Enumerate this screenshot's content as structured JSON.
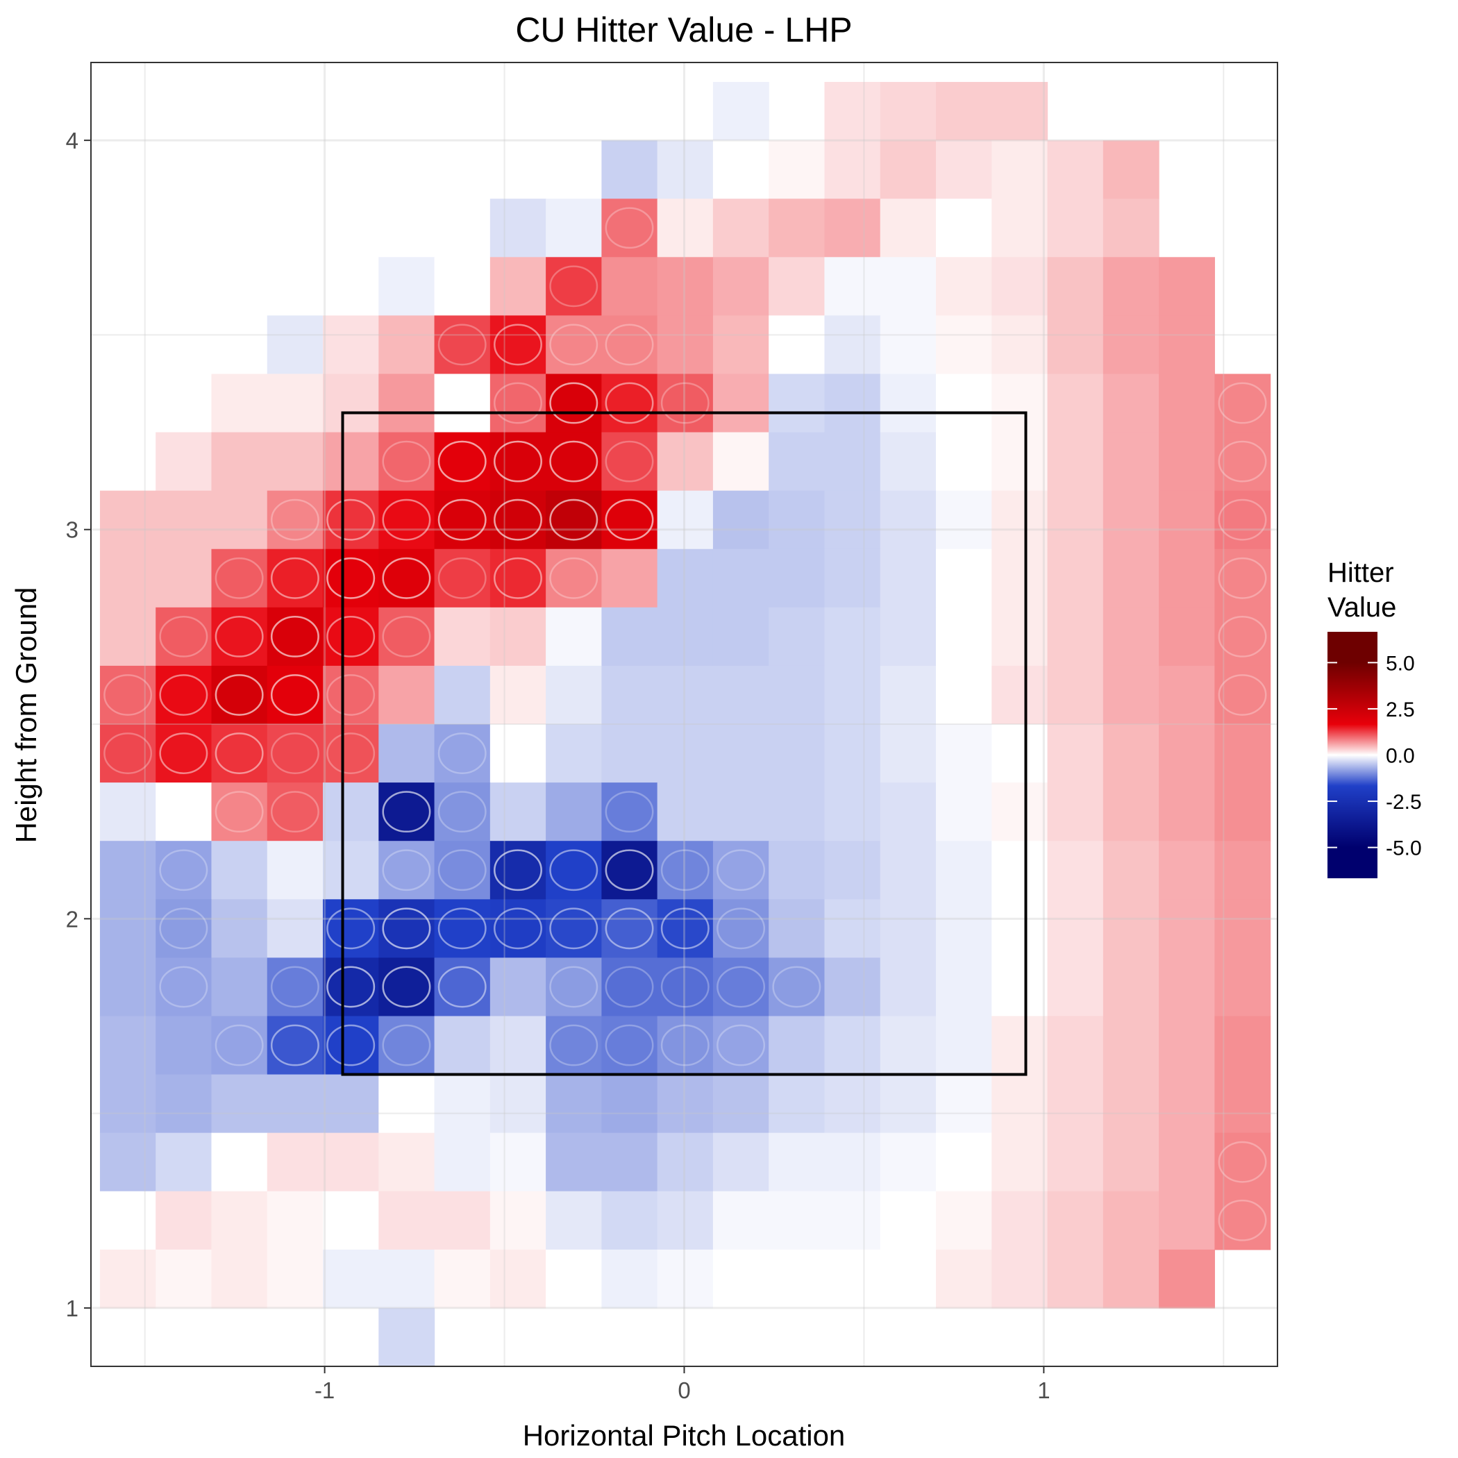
{
  "chart_data": {
    "type": "heatmap",
    "title": "CU Hitter Value - LHP",
    "xlabel": "Horizontal Pitch Location",
    "ylabel": "Height from Ground",
    "xlim": [
      -1.65,
      1.65
    ],
    "ylim": [
      0.85,
      4.2
    ],
    "xticks": [
      -1,
      0,
      1
    ],
    "xtick_labels": [
      "-1",
      "0",
      "1"
    ],
    "yticks": [
      1,
      2,
      3,
      4
    ],
    "ytick_labels": [
      "1",
      "2",
      "3",
      "4"
    ],
    "grid": true,
    "legend": {
      "title_lines": [
        "Hitter",
        "Value"
      ],
      "placement": "right",
      "range": [
        -5,
        5
      ],
      "breaks": [
        5.0,
        2.5,
        0.0,
        -2.5,
        -5.0
      ],
      "break_labels": [
        "5.0",
        "2.5",
        "0.0",
        "-2.5",
        "-5.0"
      ],
      "colors": {
        "low": "#00006e",
        "mid_low": "#2040c8",
        "zero": "#ffffff",
        "mid_high": "#e8000a",
        "high": "#6e0000"
      }
    },
    "strike_zone": {
      "x": [
        -0.95,
        0.95
      ],
      "y": [
        1.6,
        3.3
      ]
    },
    "grid_x_start": -1.625,
    "grid_x_step": 0.155,
    "grid_y_start": 0.85,
    "grid_y_step": 0.15,
    "cell_rows_top_first": [
      [
        null,
        null,
        null,
        null,
        null,
        null,
        null,
        null,
        null,
        null,
        null,
        null,
        null,
        null,
        null,
        null,
        null,
        null,
        null,
        null,
        null
      ],
      [
        null,
        null,
        null,
        null,
        null,
        null,
        null,
        null,
        null,
        null,
        null,
        null,
        null,
        null,
        null,
        null,
        null,
        null,
        null,
        null,
        null
      ],
      [
        null,
        null,
        null,
        null,
        null,
        null,
        null,
        null,
        null,
        null,
        null,
        -0.2,
        null,
        0.3,
        0.4,
        0.5,
        0.5,
        null,
        null,
        null,
        null
      ],
      [
        null,
        null,
        null,
        null,
        null,
        null,
        null,
        null,
        null,
        -0.6,
        -0.3,
        0,
        0.1,
        0.3,
        0.5,
        0.3,
        0.2,
        0.4,
        0.7,
        null,
        null
      ],
      [
        null,
        null,
        null,
        null,
        null,
        null,
        null,
        -0.4,
        -0.2,
        1.4,
        0.2,
        0.5,
        0.7,
        0.8,
        0.2,
        0,
        0.2,
        0.4,
        0.6,
        null,
        null
      ],
      [
        null,
        null,
        null,
        null,
        null,
        -0.2,
        0,
        0.7,
        1.9,
        1.1,
        1.0,
        0.8,
        0.4,
        -0.1,
        -0.1,
        0.2,
        0.3,
        0.6,
        0.9,
        1.0,
        null
      ],
      [
        null,
        null,
        null,
        -0.3,
        0.3,
        0.7,
        1.8,
        2.3,
        1.2,
        1.2,
        1.0,
        0.7,
        0,
        -0.3,
        -0.1,
        0.1,
        0.2,
        0.6,
        0.9,
        1.0,
        null
      ],
      [
        null,
        null,
        0.2,
        0.2,
        0.4,
        1.0,
        0,
        1.5,
        2.8,
        2.2,
        1.6,
        0.8,
        -0.5,
        -0.6,
        -0.2,
        0,
        0.1,
        0.5,
        0.8,
        1.0,
        1.2
      ],
      [
        0,
        0.3,
        0.6,
        0.6,
        0.9,
        1.5,
        2.6,
        2.8,
        2.8,
        1.8,
        0.6,
        0.1,
        -0.6,
        -0.6,
        -0.3,
        0,
        0.1,
        0.5,
        0.8,
        1.0,
        1.2
      ],
      [
        0.6,
        0.6,
        0.6,
        1.2,
        2.0,
        2.4,
        2.8,
        3.0,
        3.3,
        2.7,
        -0.2,
        -0.8,
        -0.7,
        -0.6,
        -0.4,
        -0.1,
        0.2,
        0.5,
        0.8,
        1.0,
        1.3
      ],
      [
        0.6,
        0.6,
        1.6,
        2.2,
        2.6,
        2.7,
        1.9,
        2.1,
        1.2,
        0.9,
        -0.7,
        -0.7,
        -0.7,
        -0.6,
        -0.4,
        0,
        0.2,
        0.5,
        0.8,
        1.0,
        1.2
      ],
      [
        0.6,
        1.6,
        2.3,
        2.8,
        2.4,
        1.6,
        0.4,
        0.5,
        -0.1,
        -0.7,
        -0.7,
        -0.7,
        -0.6,
        -0.5,
        -0.4,
        0,
        0.2,
        0.5,
        0.8,
        1.0,
        1.2
      ],
      [
        1.5,
        2.4,
        2.9,
        2.6,
        1.5,
        0.9,
        -0.6,
        0.2,
        -0.3,
        -0.6,
        -0.6,
        -0.6,
        -0.6,
        -0.5,
        -0.3,
        0,
        0.3,
        0.5,
        0.8,
        0.9,
        1.2
      ],
      [
        1.8,
        2.3,
        2.0,
        1.8,
        1.7,
        -0.9,
        -1.2,
        0,
        -0.5,
        -0.6,
        -0.6,
        -0.6,
        -0.6,
        -0.5,
        -0.3,
        -0.1,
        0,
        0.4,
        0.7,
        0.9,
        1.1
      ],
      [
        -0.3,
        0,
        1.2,
        1.6,
        -0.6,
        -4.0,
        -1.4,
        -0.6,
        -1.1,
        -1.7,
        -0.6,
        -0.6,
        -0.6,
        -0.5,
        -0.4,
        -0.1,
        0.1,
        0.4,
        0.7,
        0.9,
        1.1
      ],
      [
        -1.0,
        -1.2,
        -0.6,
        -0.2,
        -0.5,
        -1.2,
        -1.5,
        -3.3,
        -2.5,
        -4.0,
        -1.6,
        -1.2,
        -0.7,
        -0.6,
        -0.4,
        -0.2,
        0,
        0.3,
        0.6,
        0.8,
        1.0
      ],
      [
        -1.0,
        -1.3,
        -0.8,
        -0.4,
        -2.5,
        -3.0,
        -2.5,
        -2.6,
        -2.4,
        -2.1,
        -2.4,
        -1.4,
        -0.8,
        -0.5,
        -0.4,
        -0.2,
        0,
        0.3,
        0.6,
        0.8,
        1.0
      ],
      [
        -1.0,
        -1.2,
        -1.0,
        -1.7,
        -3.4,
        -3.8,
        -2.0,
        -0.9,
        -1.3,
        -1.9,
        -1.9,
        -1.7,
        -1.3,
        -0.8,
        -0.4,
        -0.2,
        0,
        0.3,
        0.6,
        0.8,
        1.0
      ],
      [
        -0.9,
        -1.1,
        -1.2,
        -2.2,
        -2.5,
        -1.6,
        -0.6,
        -0.4,
        -1.6,
        -1.7,
        -1.4,
        -1.2,
        -0.7,
        -0.5,
        -0.3,
        -0.2,
        0.2,
        0.4,
        0.6,
        0.8,
        1.1
      ],
      [
        -0.9,
        -1.0,
        -0.8,
        -0.8,
        -0.8,
        0,
        -0.2,
        -0.3,
        -1.0,
        -1.1,
        -0.9,
        -0.8,
        -0.5,
        -0.4,
        -0.3,
        -0.1,
        0.2,
        0.4,
        0.6,
        0.8,
        1.1
      ],
      [
        -0.8,
        -0.5,
        0,
        0.3,
        0.3,
        0.2,
        -0.2,
        -0.1,
        -0.9,
        -0.9,
        -0.6,
        -0.4,
        -0.2,
        -0.2,
        -0.1,
        0,
        0.2,
        0.4,
        0.6,
        0.8,
        1.2
      ],
      [
        0,
        0.3,
        0.2,
        0.1,
        0,
        0.3,
        0.3,
        0.1,
        -0.3,
        -0.5,
        -0.4,
        -0.1,
        -0.1,
        -0.1,
        0,
        0.1,
        0.3,
        0.5,
        0.7,
        0.8,
        1.2
      ],
      [
        0.2,
        0.1,
        0.2,
        0.1,
        -0.2,
        -0.2,
        0.1,
        0.2,
        0,
        -0.2,
        -0.1,
        0,
        0,
        0,
        0,
        0.2,
        0.3,
        0.5,
        0.7,
        1.1,
        null
      ],
      [
        null,
        null,
        null,
        null,
        null,
        -0.5,
        null,
        null,
        null,
        null,
        null,
        null,
        null,
        null,
        null,
        null,
        null,
        null,
        null,
        null,
        null
      ]
    ]
  }
}
